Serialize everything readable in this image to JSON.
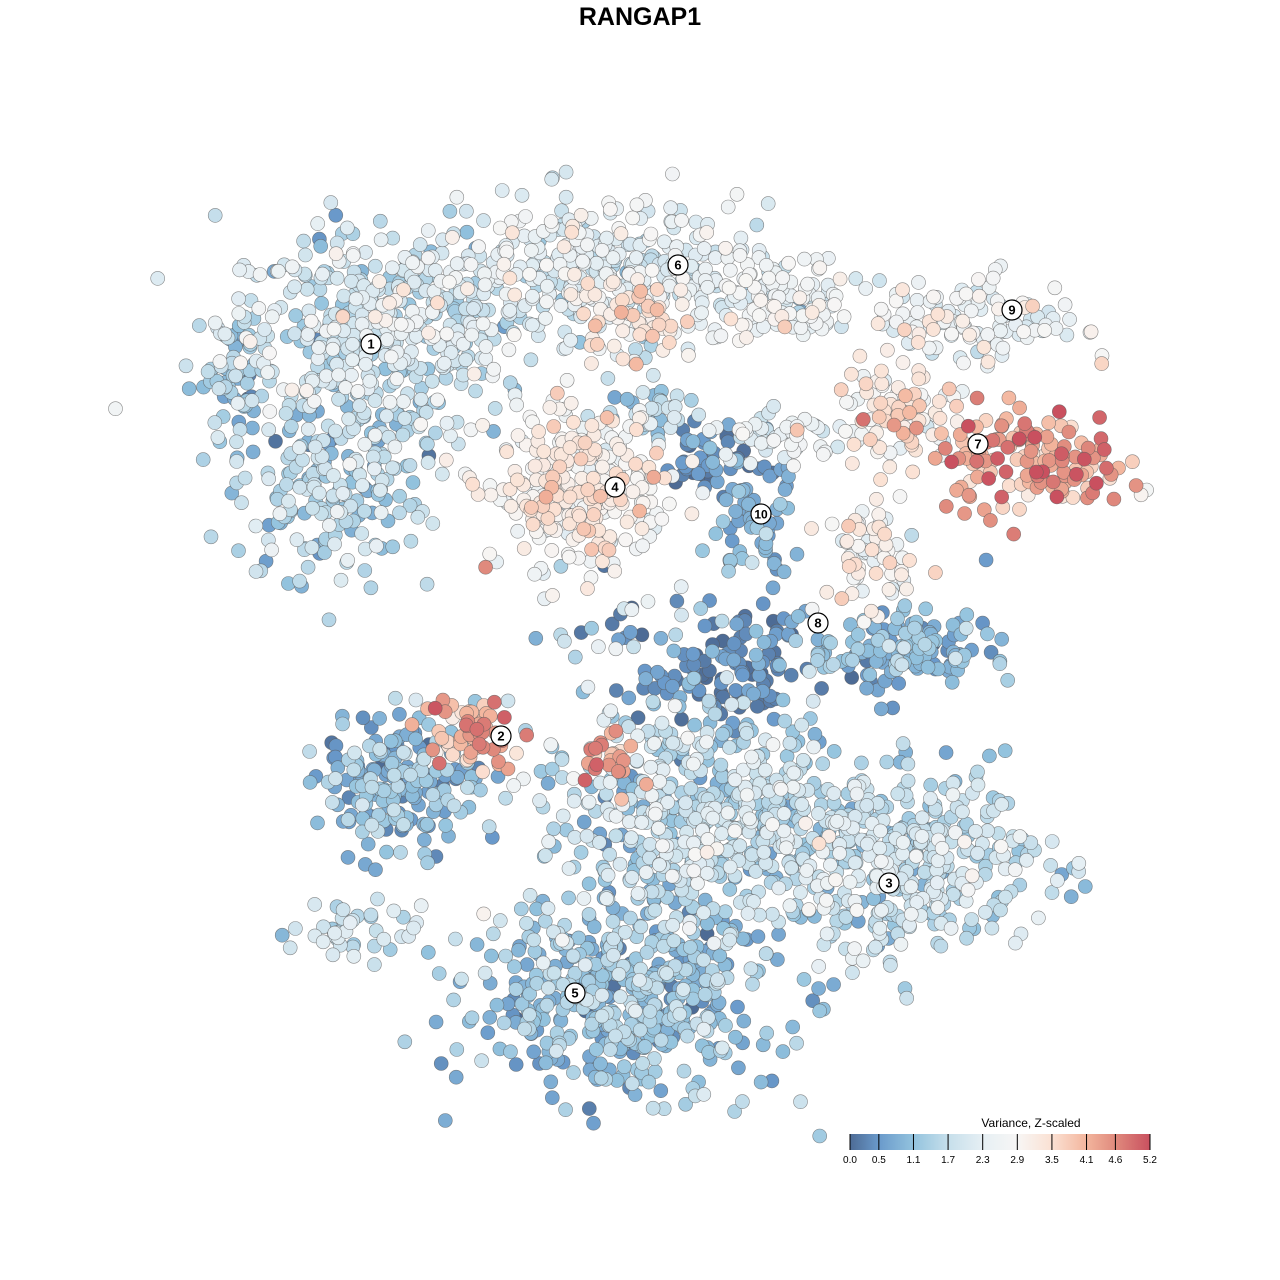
{
  "chart_data": {
    "type": "scatter",
    "title": "RANGAP1",
    "xlabel": "",
    "ylabel": "",
    "grid": false,
    "axes_visible": false,
    "embedding_units_note_hidden": true,
    "color_scale": {
      "title": "Variance, Z-scaled",
      "min": 0.0,
      "max": 5.2,
      "ticks": [
        "0.0",
        "0.5",
        "1.1",
        "1.7",
        "2.3",
        "2.9",
        "3.5",
        "4.1",
        "4.6",
        "5.2"
      ],
      "tick_values": [
        0.0,
        0.5,
        1.1,
        1.7,
        2.3,
        2.9,
        3.5,
        4.1,
        4.6,
        5.2
      ],
      "colors": [
        "#4d6b95",
        "#6a9acb",
        "#93c3de",
        "#c6dfeb",
        "#e6eff4",
        "#f7f6f5",
        "#fbe1d3",
        "#f3b59d",
        "#e08a7d",
        "#c9505f"
      ],
      "legend_position": "bottom-right"
    },
    "clusters": [
      {
        "label": "1",
        "label_pos": [
          -26.9,
          29.6
        ],
        "blobs": [
          {
            "c": [
              -26,
              31
            ],
            "s": [
              13,
              8.5
            ],
            "n": 450,
            "mean": 1.9,
            "sd": 0.55
          },
          {
            "c": [
              -31,
              16
            ],
            "s": [
              8,
              8
            ],
            "n": 200,
            "mean": 1.4,
            "sd": 0.5
          },
          {
            "c": [
              -40,
              26
            ],
            "s": [
              3,
              6
            ],
            "n": 60,
            "mean": 1.2,
            "sd": 0.4
          }
        ]
      },
      {
        "label": "6",
        "label_pos": [
          3.8,
          37.5
        ],
        "blobs": [
          {
            "c": [
              -4,
              37
            ],
            "s": [
              14,
              5.5
            ],
            "n": 350,
            "mean": 2.2,
            "sd": 0.5
          },
          {
            "c": [
              0,
              32
            ],
            "s": [
              5,
              3
            ],
            "n": 60,
            "mean": 3.3,
            "sd": 0.4
          },
          {
            "c": [
              14,
              34
            ],
            "s": [
              6,
              4
            ],
            "n": 110,
            "mean": 2.5,
            "sd": 0.45
          }
        ]
      },
      {
        "label": "4",
        "label_pos": [
          -2.5,
          15.3
        ],
        "blobs": [
          {
            "c": [
              -6,
              15
            ],
            "s": [
              7.5,
              6.5
            ],
            "n": 280,
            "mean": 3.0,
            "sd": 0.45
          },
          {
            "c": [
              0,
              23
            ],
            "s": [
              5,
              3
            ],
            "n": 40,
            "mean": 1.4,
            "sd": 0.4
          }
        ]
      },
      {
        "label": "9",
        "label_pos": [
          37.2,
          33
        ],
        "blobs": [
          {
            "c": [
              34,
              32
            ],
            "s": [
              8.5,
              3.5
            ],
            "n": 120,
            "mean": 2.6,
            "sd": 0.5
          }
        ]
      },
      {
        "label": "7",
        "label_pos": [
          33.8,
          19.6
        ],
        "blobs": [
          {
            "c": [
              39,
              18
            ],
            "s": [
              8,
              4.2
            ],
            "n": 150,
            "mean": 4.2,
            "sd": 0.6
          },
          {
            "c": [
              26,
              23
            ],
            "s": [
              6,
              3.8
            ],
            "n": 90,
            "mean": 3.2,
            "sd": 0.5
          },
          {
            "c": [
              14,
              20
            ],
            "s": [
              6,
              2.5
            ],
            "n": 50,
            "mean": 2.3,
            "sd": 0.4
          }
        ]
      },
      {
        "label": "10",
        "label_pos": [
          12.1,
          12.6
        ],
        "blobs": [
          {
            "c": [
              12,
              12
            ],
            "s": [
              3.5,
              4.5
            ],
            "n": 60,
            "mean": 0.8,
            "sd": 0.35
          },
          {
            "c": [
              7,
              18
            ],
            "s": [
              4,
              2.5
            ],
            "n": 50,
            "mean": 0.4,
            "sd": 0.3
          },
          {
            "c": [
              23,
              9
            ],
            "s": [
              4,
              5
            ],
            "n": 70,
            "mean": 2.8,
            "sd": 0.5
          }
        ]
      },
      {
        "label": "8",
        "label_pos": [
          17.8,
          1.7
        ],
        "blobs": [
          {
            "c": [
              26,
              -1
            ],
            "s": [
              7.5,
              3.5
            ],
            "n": 150,
            "mean": 0.9,
            "sd": 0.4
          },
          {
            "c": [
              8,
              -3
            ],
            "s": [
              7,
              4.5
            ],
            "n": 110,
            "mean": 0.3,
            "sd": 0.3
          }
        ]
      },
      {
        "label": "2",
        "label_pos": [
          -13.9,
          -9.6
        ],
        "blobs": [
          {
            "c": [
              -24,
              -14
            ],
            "s": [
              6.5,
              5.5
            ],
            "n": 200,
            "mean": 1.0,
            "sd": 0.45
          },
          {
            "c": [
              -17,
              -9
            ],
            "s": [
              4,
              3
            ],
            "n": 60,
            "mean": 4.0,
            "sd": 0.55
          },
          {
            "c": [
              -3,
              -12
            ],
            "s": [
              2,
              3
            ],
            "n": 25,
            "mean": 4.3,
            "sd": 0.4
          }
        ]
      },
      {
        "label": "3",
        "label_pos": [
          24.9,
          -24.3
        ],
        "blobs": [
          {
            "c": [
              6,
              -18
            ],
            "s": [
              14,
              9.5
            ],
            "n": 550,
            "mean": 1.6,
            "sd": 0.55
          },
          {
            "c": [
              26,
              -22
            ],
            "s": [
              12,
              7.5
            ],
            "n": 400,
            "mean": 1.7,
            "sd": 0.5
          }
        ]
      },
      {
        "label": "5",
        "label_pos": [
          -6.5,
          -35.3
        ],
        "blobs": [
          {
            "c": [
              -2,
              -36
            ],
            "s": [
              13,
              7.5
            ],
            "n": 500,
            "mean": 1.1,
            "sd": 0.45
          },
          {
            "c": [
              -29,
              -29
            ],
            "s": [
              5,
              2.5
            ],
            "n": 40,
            "mean": 1.8,
            "sd": 0.4
          }
        ]
      }
    ],
    "embedding_range": {
      "x": [
        -48,
        52
      ],
      "y": [
        -48,
        48
      ]
    }
  }
}
